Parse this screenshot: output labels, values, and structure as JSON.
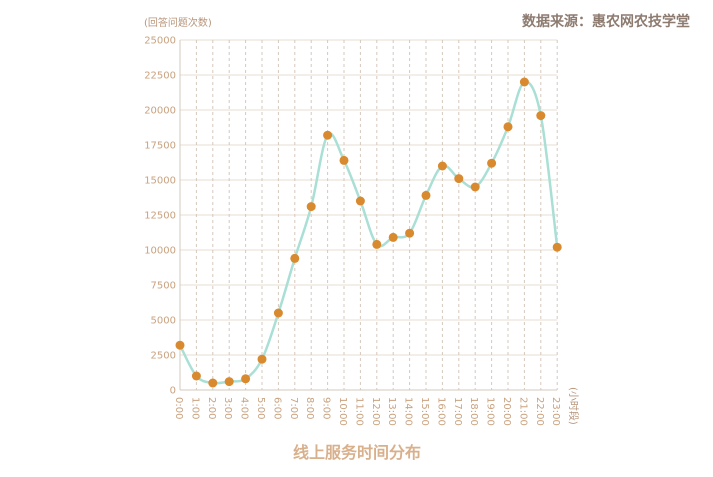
{
  "chart_data": {
    "type": "line",
    "title": "线上服务时间分布",
    "source": "数据来源：惠农网农技学堂",
    "ylabel": "(回答问题次数)",
    "xlabel": "(小时段)",
    "ylim": [
      0,
      25000
    ],
    "yticks": [
      "0",
      "2500",
      "5000",
      "7500",
      "10000",
      "12500",
      "15000",
      "17500",
      "20000",
      "22500",
      "25000"
    ],
    "categories": [
      "0:00",
      "1:00",
      "2:00",
      "3:00",
      "4:00",
      "5:00",
      "6:00",
      "7:00",
      "8:00",
      "9:00",
      "10:00",
      "11:00",
      "12:00",
      "13:00",
      "14:00",
      "15:00",
      "16:00",
      "17:00",
      "18:00",
      "19:00",
      "20:00",
      "21:00",
      "22:00",
      "23:00"
    ],
    "values": [
      3200,
      1000,
      500,
      600,
      800,
      2200,
      5500,
      9400,
      13100,
      18200,
      16400,
      13500,
      10400,
      10900,
      11200,
      13900,
      16000,
      15100,
      14500,
      16200,
      18800,
      22000,
      19600,
      10200
    ],
    "grid": true,
    "colors": {
      "line": "#a9dfd5",
      "marker": "#d98a2f",
      "grid": "#f1e8e0",
      "axis": "#d5c8bd"
    }
  }
}
